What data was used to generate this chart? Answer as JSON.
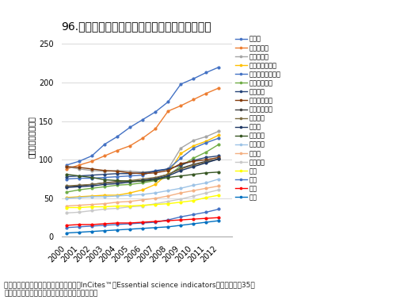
{
  "title": "96.分野別論文数（人口当り）の推移：地球宇宙",
  "ylabel": "人口百万当り論文数",
  "years": [
    2000,
    2001,
    2002,
    2003,
    2004,
    2005,
    2006,
    2007,
    2008,
    2009,
    2010,
    2011,
    2012
  ],
  "note": "注）分野別論文数はトムソン・ロイターInCites™のEssential science indicatorsに基づき、表35に\n示した新たに括った分野別の論文数として計算。",
  "series": [
    {
      "name": "スイス",
      "color": "#4472C4",
      "marker": "o",
      "lw": 1.5,
      "data": [
        93,
        98,
        105,
        120,
        130,
        142,
        152,
        162,
        175,
        198,
        205,
        213,
        220
      ]
    },
    {
      "name": "ノルウェー",
      "color": "#ED7D31",
      "marker": "o",
      "lw": 1.5,
      "data": [
        88,
        93,
        98,
        105,
        112,
        118,
        128,
        140,
        163,
        170,
        178,
        186,
        193
      ]
    },
    {
      "name": "デンマーク",
      "color": "#A5A5A5",
      "marker": "o",
      "lw": 1.5,
      "data": [
        91,
        88,
        86,
        85,
        86,
        85,
        84,
        85,
        88,
        115,
        125,
        130,
        137
      ]
    },
    {
      "name": "オーストラリア",
      "color": "#FFC000",
      "marker": "o",
      "lw": 1.5,
      "data": [
        51,
        52,
        53,
        54,
        54,
        57,
        61,
        68,
        82,
        108,
        118,
        124,
        132
      ]
    },
    {
      "name": "ニュージーランド",
      "color": "#4472C4",
      "marker": "o",
      "lw": 1.5,
      "data": [
        75,
        76,
        76,
        77,
        78,
        79,
        80,
        86,
        88,
        102,
        115,
        122,
        128
      ]
    },
    {
      "name": "フィンランド",
      "color": "#70AD47",
      "marker": "o",
      "lw": 1.5,
      "data": [
        58,
        61,
        63,
        65,
        67,
        68,
        70,
        73,
        79,
        92,
        102,
        110,
        120
      ]
    },
    {
      "name": "オランダ",
      "color": "#264478",
      "marker": "o",
      "lw": 1.5,
      "data": [
        78,
        79,
        80,
        81,
        82,
        82,
        83,
        85,
        88,
        93,
        99,
        103,
        105
      ]
    },
    {
      "name": "スウェーデン",
      "color": "#843C0C",
      "marker": "o",
      "lw": 1.5,
      "data": [
        91,
        90,
        88,
        86,
        85,
        83,
        82,
        83,
        86,
        95,
        98,
        100,
        103
      ]
    },
    {
      "name": "オーストリア",
      "color": "#404040",
      "marker": "o",
      "lw": 1.5,
      "data": [
        65,
        66,
        68,
        70,
        71,
        72,
        73,
        76,
        81,
        89,
        94,
        98,
        101
      ]
    },
    {
      "name": "イギリス",
      "color": "#7B6B42",
      "marker": "o",
      "lw": 1.5,
      "data": [
        66,
        67,
        68,
        70,
        72,
        73,
        75,
        77,
        81,
        88,
        93,
        97,
        101
      ]
    },
    {
      "name": "カナダ",
      "color": "#1F3864",
      "marker": "o",
      "lw": 1.5,
      "data": [
        64,
        65,
        66,
        68,
        69,
        71,
        73,
        75,
        79,
        86,
        91,
        96,
        101
      ]
    },
    {
      "name": "ベルギー",
      "color": "#375623",
      "marker": "o",
      "lw": 1.5,
      "data": [
        81,
        79,
        77,
        74,
        73,
        72,
        72,
        74,
        77,
        79,
        81,
        83,
        84
      ]
    },
    {
      "name": "フランス",
      "color": "#9DC3E6",
      "marker": "o",
      "lw": 1.5,
      "data": [
        50,
        51,
        52,
        52,
        53,
        54,
        55,
        57,
        60,
        63,
        67,
        70,
        75
      ]
    },
    {
      "name": "ドイツ",
      "color": "#F4B183",
      "marker": "o",
      "lw": 1.5,
      "data": [
        40,
        41,
        42,
        43,
        45,
        46,
        48,
        50,
        53,
        57,
        60,
        63,
        66
      ]
    },
    {
      "name": "イタリア",
      "color": "#C9C9C9",
      "marker": "o",
      "lw": 1.5,
      "data": [
        31,
        32,
        34,
        36,
        37,
        39,
        40,
        43,
        46,
        49,
        53,
        57,
        61
      ]
    },
    {
      "name": "米国",
      "color": "#FFFF00",
      "marker": "o",
      "lw": 1.5,
      "data": [
        38,
        38,
        39,
        39,
        40,
        40,
        41,
        42,
        43,
        45,
        47,
        51,
        54
      ]
    },
    {
      "name": "台湾",
      "color": "#4472C4",
      "marker": "o",
      "lw": 1.5,
      "data": [
        12,
        13,
        14,
        15,
        16,
        17,
        18,
        19,
        22,
        26,
        29,
        32,
        36
      ]
    },
    {
      "name": "日本",
      "color": "#FF0000",
      "marker": "o",
      "lw": 1.5,
      "data": [
        15,
        16,
        16,
        17,
        18,
        18,
        19,
        20,
        21,
        22,
        23,
        24,
        25
      ]
    },
    {
      "name": "韓国",
      "color": "#0070C0",
      "marker": "o",
      "lw": 1.5,
      "data": [
        5,
        6,
        7,
        8,
        9,
        10,
        11,
        12,
        13,
        15,
        17,
        19,
        21
      ]
    }
  ],
  "ylim": [
    0,
    260
  ],
  "yticks": [
    0,
    50,
    100,
    150,
    200,
    250
  ],
  "bg_color": "#FFFFFF",
  "grid_color": "#D9D9D9",
  "title_fontsize": 10,
  "tick_fontsize": 7,
  "legend_fontsize": 6,
  "note_fontsize": 6.5
}
